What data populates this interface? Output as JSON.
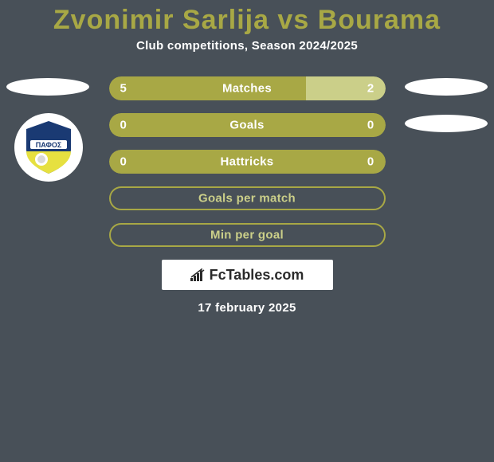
{
  "title": "Zvonimir Sarlija vs Bourama",
  "title_color": "#a8a845",
  "subtitle": "Club competitions, Season 2024/2025",
  "background_color": "#485058",
  "text_color": "#ffffff",
  "bar_bg_color": "#a8a845",
  "bar_light_color": "#cbcf89",
  "brand": "FcTables.com",
  "date": "17 february 2025",
  "badge": {
    "text": "ΠΑΦΟΣ",
    "bg_top": "#1a3a73",
    "bg_bottom": "#e6e040"
  },
  "rows": [
    {
      "name": "Matches",
      "left_val": "5",
      "right_val": "2",
      "left_pct": 71.4,
      "right_pct": 28.6,
      "left_color": "#a8a845",
      "right_color": "#cbcf89",
      "label_color": "#ffffff",
      "filled": true
    },
    {
      "name": "Goals",
      "left_val": "0",
      "right_val": "0",
      "left_pct": 50,
      "right_pct": 50,
      "left_color": "#a8a845",
      "right_color": "#a8a845",
      "label_color": "#ffffff",
      "filled": true
    },
    {
      "name": "Hattricks",
      "left_val": "0",
      "right_val": "0",
      "left_pct": 50,
      "right_pct": 50,
      "left_color": "#a8a845",
      "right_color": "#a8a845",
      "label_color": "#ffffff",
      "filled": true
    },
    {
      "name": "Goals per match",
      "left_val": "",
      "right_val": "",
      "left_pct": 0,
      "right_pct": 0,
      "border_color": "#a8a845",
      "label_color": "#cbcf89",
      "filled": false
    },
    {
      "name": "Min per goal",
      "left_val": "",
      "right_val": "",
      "left_pct": 0,
      "right_pct": 0,
      "border_color": "#a8a845",
      "label_color": "#cbcf89",
      "filled": false
    }
  ]
}
